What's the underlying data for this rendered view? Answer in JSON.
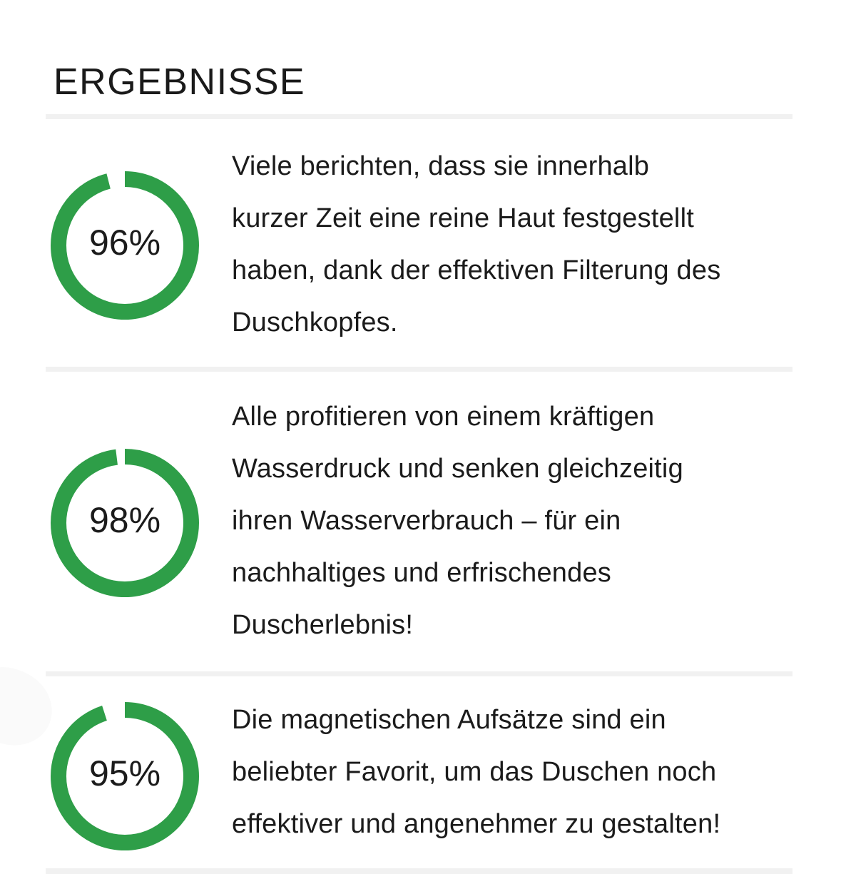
{
  "page": {
    "title": "ERGEBNISSE"
  },
  "theme": {
    "accent_green": "#2e9e48",
    "text_color": "#1b1b1b",
    "divider_color": "#f1f1f1",
    "background": "#ffffff"
  },
  "stats": [
    {
      "percent": 96,
      "label": "96%",
      "text": "Viele berichten, dass sie innerhalb kurzer Zeit eine reine Haut festgestellt haben, dank der effektiven Filterung des Duschkopfes.",
      "lines": [
        "Viele berichten, dass sie innerhalb",
        "kurzer Zeit eine reine Haut festgestellt",
        "haben, dank der effektiven Filterung des",
        "Duschkopfes."
      ]
    },
    {
      "percent": 98,
      "label": "98%",
      "text": "Alle profitieren von einem kräftigen Wasserdruck und senken gleichzeitig ihren Wasserverbrauch – für ein nachhaltiges und erfrischendes Duscherlebnis!",
      "lines": [
        "Alle profitieren von einem kräftigen",
        "Wasserdruck und senken gleichzeitig",
        "ihren Wasserverbrauch – für ein",
        "nachhaltiges und erfrischendes",
        "Duscherlebnis!"
      ]
    },
    {
      "percent": 95,
      "label": "95%",
      "text": "Die magnetischen Aufsätze sind ein beliebter Favorit, um das Duschen noch effektiver und angenehmer zu gestalten!",
      "lines": [
        "Die magnetischen Aufsätze sind ein",
        "beliebter Favorit, um das Duschen noch",
        "effektiver und angenehmer zu gestalten!"
      ]
    }
  ],
  "chart_data": {
    "type": "pie",
    "subtype": "donut-gauges",
    "title": "ERGEBNISSE",
    "gauges": [
      {
        "label": "96%",
        "value": 96,
        "remainder": 4
      },
      {
        "label": "98%",
        "value": 98,
        "remainder": 2
      },
      {
        "label": "95%",
        "value": 95,
        "remainder": 5
      }
    ],
    "color": "#2e9e48",
    "start_angle_deg": 0,
    "direction": "clockwise",
    "gap_position": "top"
  }
}
